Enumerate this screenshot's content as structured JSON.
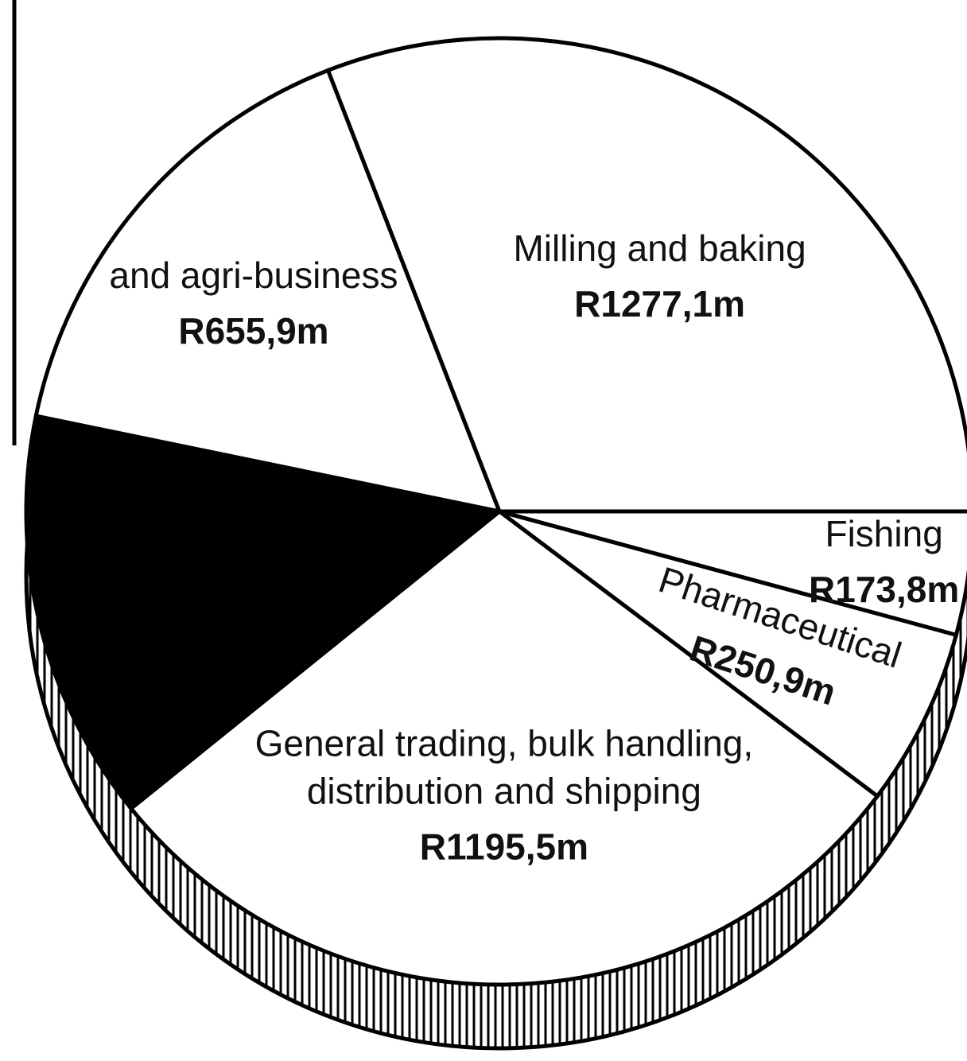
{
  "chart_data": {
    "type": "pie",
    "categories": [
      "Fishing",
      "Pharmaceutical",
      "General trading, bulk handling, distribution and shipping",
      null,
      "and agri-business",
      "Milling and baking"
    ],
    "values": [
      173.8,
      250.9,
      1195.5,
      580,
      655.9,
      1277.1
    ],
    "value_labels": [
      "R173,8m",
      "R250,9m",
      "R1195,5m",
      null,
      "R655,9m",
      "R1277,1m"
    ],
    "colors": [
      "#ffffff",
      "#ffffff",
      "#ffffff",
      "#000000",
      "#ffffff",
      "#ffffff"
    ]
  }
}
